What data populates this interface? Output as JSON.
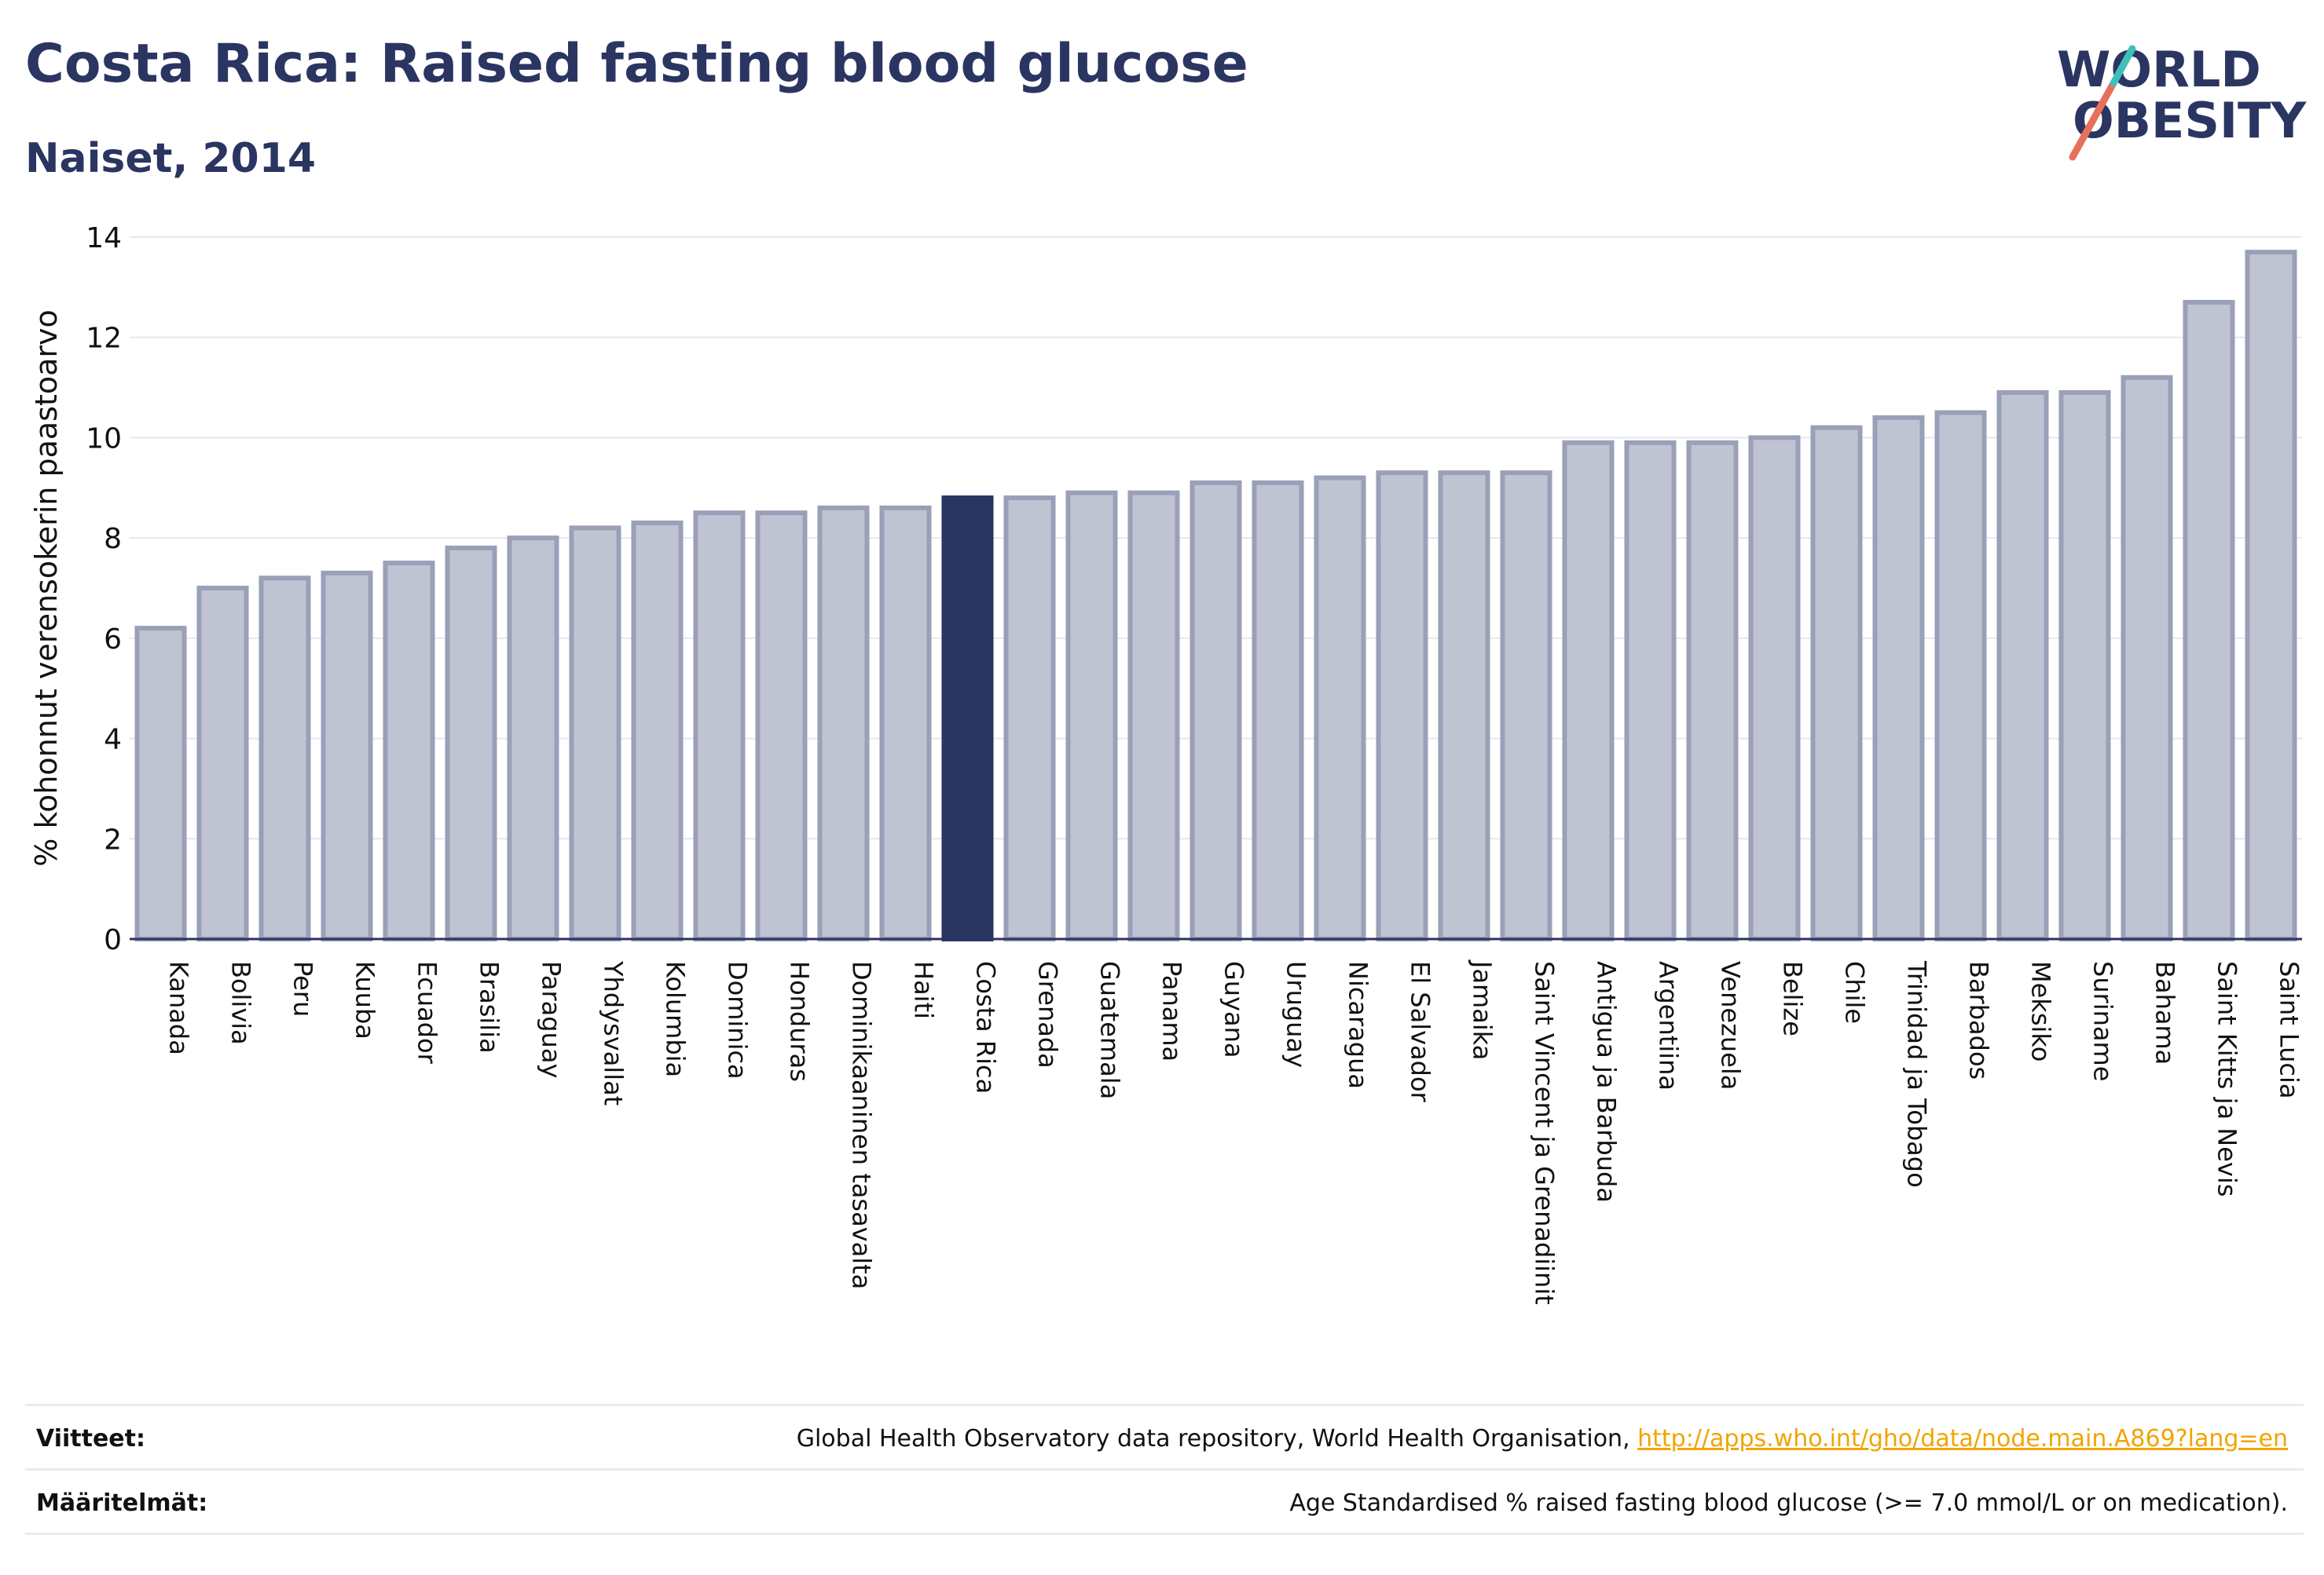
{
  "header": {
    "title": "Costa Rica: Raised fasting blood glucose",
    "subtitle": "Naiset, 2014"
  },
  "logo": {
    "line1": "WORLD",
    "line2": "OBESITY",
    "text_color": "#2a3561",
    "slash_colors": [
      "#e8705a",
      "#3ec1b9"
    ]
  },
  "chart_data": {
    "type": "bar",
    "ylabel": "% kohonnut verensokerin paastoarvo",
    "ylim": [
      0,
      14
    ],
    "yticks": [
      0,
      2,
      4,
      6,
      8,
      10,
      12,
      14
    ],
    "grid": true,
    "highlight": "Costa Rica",
    "colors": {
      "bar": "#c0c4d2",
      "bar_edge": "#9aa0b8",
      "highlight": "#2a3561"
    },
    "categories": [
      "Kanada",
      "Bolivia",
      "Peru",
      "Kuuba",
      "Ecuador",
      "Brasilia",
      "Paraguay",
      "Yhdysvallat",
      "Kolumbia",
      "Dominica",
      "Honduras",
      "Dominikaaninen tasavalta",
      "Haiti",
      "Costa Rica",
      "Grenada",
      "Guatemala",
      "Panama",
      "Guyana",
      "Uruguay",
      "Nicaragua",
      "El Salvador",
      "Jamaika",
      "Saint Vincent ja Grenadiinit",
      "Antigua ja Barbuda",
      "Argentiina",
      "Venezuela",
      "Belize",
      "Chile",
      "Trinidad ja Tobago",
      "Barbados",
      "Meksiko",
      "Suriname",
      "Bahama",
      "Saint Kitts ja Nevis",
      "Saint Lucia"
    ],
    "values": [
      6.2,
      7.0,
      7.2,
      7.3,
      7.5,
      7.8,
      8.0,
      8.2,
      8.3,
      8.5,
      8.5,
      8.6,
      8.6,
      8.8,
      8.8,
      8.9,
      8.9,
      9.1,
      9.1,
      9.2,
      9.3,
      9.3,
      9.3,
      9.9,
      9.9,
      9.9,
      10.0,
      10.2,
      10.4,
      10.5,
      10.9,
      10.9,
      11.2,
      12.7,
      13.7
    ]
  },
  "footer": {
    "sources_label": "Viitteet:",
    "sources_text": "Global Health Observatory data repository, World Health Organisation, ",
    "sources_link": "http://apps.who.int/gho/data/node.main.A869?lang=en",
    "definitions_label": "Määritelmät:",
    "definitions_text": "Age Standardised % raised fasting blood glucose (>= 7.0 mmol/L or on medication)."
  }
}
